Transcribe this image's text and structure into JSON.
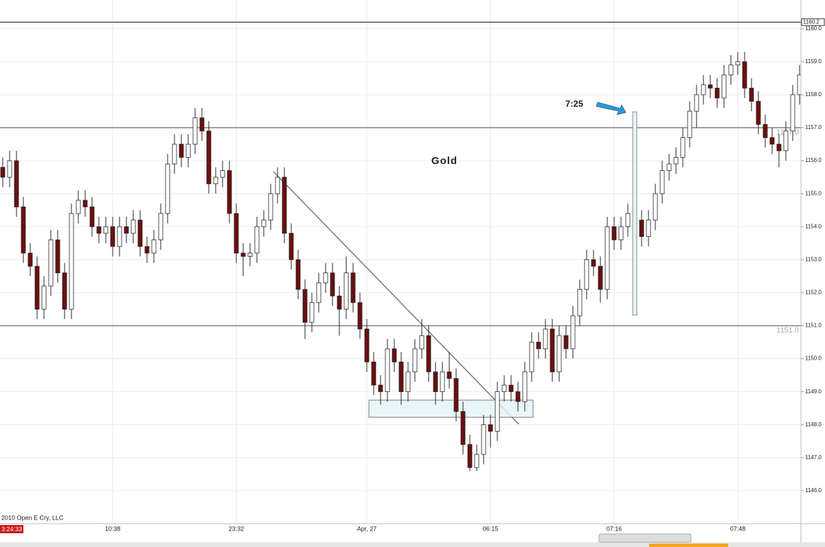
{
  "chart_data": {
    "type": "candlestick",
    "title": "Gold",
    "annotation": "7:25",
    "copyright": "2010 Open E Cry, LLC",
    "clock": "3:24:33",
    "categories": [
      null,
      null,
      null,
      null,
      null,
      null,
      null,
      null,
      null,
      null,
      null,
      null,
      null,
      null,
      null,
      null,
      "10:38",
      null,
      null,
      null,
      null,
      null,
      null,
      null,
      null,
      null,
      null,
      null,
      null,
      null,
      null,
      null,
      null,
      null,
      "23:32",
      null,
      null,
      null,
      null,
      null,
      null,
      null,
      null,
      null,
      null,
      null,
      null,
      null,
      null,
      null,
      null,
      null,
      null,
      "Apr, 27",
      null,
      null,
      null,
      null,
      null,
      null,
      null,
      null,
      null,
      null,
      null,
      null,
      null,
      null,
      null,
      null,
      null,
      "06:15",
      null,
      null,
      null,
      null,
      null,
      null,
      null,
      null,
      null,
      null,
      null,
      null,
      null,
      null,
      null,
      null,
      null,
      "07:16",
      null,
      null,
      null,
      null,
      null,
      null,
      null,
      null,
      null,
      null,
      null,
      null,
      null,
      null,
      null,
      null,
      null,
      "07:48",
      null,
      null,
      null,
      null,
      null,
      null,
      null,
      null,
      null
    ],
    "open": [
      1155.8,
      1155.5,
      1156.0,
      1154.6,
      1153.2,
      1152.8,
      1151.5,
      1152.2,
      1153.6,
      1152.6,
      1151.5,
      1154.4,
      1154.8,
      1154.6,
      1154.0,
      1153.8,
      1154.0,
      1153.4,
      1154.0,
      1153.8,
      1154.2,
      1153.4,
      1153.2,
      1153.6,
      1154.4,
      1155.9,
      1156.5,
      1156.1,
      1156.5,
      1157.3,
      1156.9,
      1155.3,
      1155.5,
      1155.7,
      1154.4,
      1153.2,
      1153.1,
      1153.2,
      1154.0,
      1154.2,
      1155.0,
      1155.5,
      1153.8,
      1153.0,
      1152.1,
      1151.1,
      1151.7,
      1152.3,
      1152.6,
      1151.9,
      1151.5,
      1152.6,
      1151.7,
      1150.9,
      1149.9,
      1149.2,
      1149.0,
      1150.3,
      1149.9,
      1149.0,
      1149.6,
      1150.3,
      1150.7,
      1149.6,
      1149.0,
      1149.6,
      1149.4,
      1148.4,
      1147.4,
      1146.7,
      1147.1,
      1148.0,
      1147.8,
      1149.0,
      1149.2,
      1149.0,
      1148.7,
      1149.6,
      1150.5,
      1150.3,
      1150.9,
      1149.6,
      1150.7,
      1150.3,
      1151.3,
      1152.1,
      1153.0,
      1152.8,
      1152.1,
      1154.0,
      1153.6,
      1154.0,
      1154.4,
      1154.2,
      1153.7,
      1154.2,
      1155.0,
      1155.7,
      1155.9,
      1156.1,
      1156.7,
      1157.5,
      1158.0,
      1158.3,
      1158.2,
      1157.9,
      1158.6,
      1158.9,
      1159.0,
      1158.2,
      1157.8,
      1157.1,
      1156.7,
      1156.5,
      1156.3,
      1156.9,
      1158.0
    ],
    "high": [
      1156.1,
      1156.3,
      1156.3,
      1154.9,
      1153.5,
      1153.1,
      1152.5,
      1153.9,
      1153.9,
      1152.9,
      1154.7,
      1155.1,
      1155.1,
      1154.9,
      1154.3,
      1154.3,
      1154.3,
      1154.3,
      1154.3,
      1154.5,
      1154.5,
      1153.7,
      1153.9,
      1154.7,
      1156.2,
      1156.8,
      1156.8,
      1156.8,
      1157.6,
      1157.6,
      1157.2,
      1155.8,
      1156.0,
      1156.0,
      1154.7,
      1153.5,
      1153.5,
      1154.3,
      1154.5,
      1155.3,
      1155.8,
      1155.8,
      1154.1,
      1153.3,
      1152.4,
      1152.0,
      1152.6,
      1152.9,
      1152.9,
      1152.2,
      1153.1,
      1152.9,
      1152.0,
      1151.2,
      1150.2,
      1149.5,
      1150.6,
      1150.6,
      1150.2,
      1149.9,
      1150.6,
      1151.2,
      1151.0,
      1149.9,
      1149.9,
      1150.2,
      1149.7,
      1148.7,
      1147.7,
      1147.4,
      1148.3,
      1148.3,
      1149.3,
      1149.5,
      1149.5,
      1149.3,
      1149.9,
      1150.8,
      1150.8,
      1151.2,
      1151.2,
      1151.0,
      1151.0,
      1151.6,
      1152.4,
      1153.3,
      1153.3,
      1153.1,
      1154.3,
      1154.3,
      1154.3,
      1154.7,
      1154.7,
      1154.5,
      1154.5,
      1155.3,
      1156.0,
      1156.2,
      1156.4,
      1157.0,
      1157.8,
      1158.3,
      1158.6,
      1158.6,
      1158.5,
      1158.9,
      1159.2,
      1159.3,
      1159.3,
      1158.5,
      1158.1,
      1157.4,
      1157.0,
      1156.8,
      1157.2,
      1158.3,
      1158.9
    ],
    "low": [
      1155.2,
      1155.2,
      1154.3,
      1152.9,
      1152.5,
      1151.2,
      1151.2,
      1151.9,
      1152.3,
      1151.2,
      1151.2,
      1154.1,
      1154.3,
      1153.7,
      1153.5,
      1153.5,
      1153.1,
      1153.1,
      1153.5,
      1153.5,
      1153.1,
      1152.9,
      1152.9,
      1153.3,
      1154.1,
      1155.6,
      1155.8,
      1155.8,
      1156.2,
      1156.6,
      1155.0,
      1155.0,
      1155.2,
      1154.1,
      1152.9,
      1152.5,
      1152.8,
      1152.9,
      1153.7,
      1153.9,
      1154.7,
      1153.5,
      1152.7,
      1151.8,
      1150.6,
      1150.8,
      1151.4,
      1152.0,
      1151.6,
      1150.7,
      1151.2,
      1151.4,
      1150.6,
      1149.6,
      1148.9,
      1148.6,
      1148.7,
      1149.6,
      1148.6,
      1148.7,
      1149.3,
      1150.0,
      1149.3,
      1148.6,
      1148.7,
      1149.1,
      1148.1,
      1147.1,
      1146.6,
      1146.6,
      1146.8,
      1147.3,
      1147.5,
      1148.7,
      1148.7,
      1148.4,
      1148.4,
      1149.3,
      1150.0,
      1150.0,
      1149.3,
      1149.3,
      1150.0,
      1150.0,
      1151.0,
      1151.8,
      1152.5,
      1151.7,
      1151.8,
      1153.3,
      1153.3,
      1153.7,
      1153.9,
      1153.4,
      1153.4,
      1153.9,
      1154.7,
      1155.4,
      1155.6,
      1155.8,
      1156.4,
      1157.0,
      1157.7,
      1157.9,
      1157.6,
      1157.6,
      1158.3,
      1158.6,
      1157.9,
      1157.5,
      1156.8,
      1156.4,
      1156.2,
      1155.8,
      1156.0,
      1156.6,
      1157.7
    ],
    "close": [
      1155.5,
      1156.0,
      1154.6,
      1153.2,
      1152.8,
      1151.5,
      1152.2,
      1153.6,
      1152.6,
      1151.5,
      1154.4,
      1154.8,
      1154.6,
      1154.0,
      1153.8,
      1154.0,
      1153.4,
      1154.0,
      1153.8,
      1154.2,
      1153.4,
      1153.2,
      1153.6,
      1154.4,
      1155.9,
      1156.5,
      1156.1,
      1156.5,
      1157.3,
      1156.9,
      1155.3,
      1155.5,
      1155.7,
      1154.4,
      1153.2,
      1153.1,
      1153.2,
      1154.0,
      1154.2,
      1155.0,
      1155.5,
      1153.8,
      1153.0,
      1152.1,
      1151.1,
      1151.7,
      1152.3,
      1152.6,
      1151.9,
      1151.5,
      1152.6,
      1151.7,
      1150.9,
      1149.9,
      1149.2,
      1149.0,
      1150.3,
      1149.9,
      1149.0,
      1149.6,
      1150.3,
      1150.7,
      1149.6,
      1149.0,
      1149.6,
      1149.4,
      1148.4,
      1147.4,
      1146.7,
      1147.1,
      1148.0,
      1147.8,
      1149.0,
      1149.2,
      1149.0,
      1148.7,
      1149.6,
      1150.5,
      1150.3,
      1150.9,
      1149.6,
      1150.7,
      1150.3,
      1151.3,
      1152.1,
      1153.0,
      1152.8,
      1152.1,
      1154.0,
      1153.6,
      1154.0,
      1154.4,
      1154.2,
      1153.7,
      1154.2,
      1155.0,
      1155.7,
      1155.9,
      1156.1,
      1156.7,
      1157.5,
      1158.0,
      1158.3,
      1158.2,
      1157.9,
      1158.6,
      1158.9,
      1159.0,
      1158.2,
      1157.8,
      1157.1,
      1156.7,
      1156.5,
      1156.3,
      1156.9,
      1158.0,
      1158.6
    ],
    "up_color": "#ffffff",
    "down_color": "#6b1010",
    "ylim": [
      1145.0,
      1160.87
    ],
    "yticks": [
      {
        "value": 1146,
        "label": "1146.0"
      },
      {
        "value": 1147,
        "label": "1147.0"
      },
      {
        "value": 1148,
        "label": "1148.0"
      },
      {
        "value": 1149,
        "label": "1149.0"
      },
      {
        "value": 1150,
        "label": "1150.0"
      },
      {
        "value": 1151,
        "label": "1151.0"
      },
      {
        "value": 1152,
        "label": "1152.0"
      },
      {
        "value": 1153,
        "label": "1153.0"
      },
      {
        "value": 1154,
        "label": "1154.0"
      },
      {
        "value": 1155,
        "label": "1155.0"
      },
      {
        "value": 1156,
        "label": "1156.0"
      },
      {
        "value": 1157,
        "label": "1157.0"
      },
      {
        "value": 1158,
        "label": "1158.0"
      },
      {
        "value": 1159,
        "label": "1159.0"
      },
      {
        "value": 1160,
        "label": "1160.0"
      }
    ],
    "hlines": [
      {
        "value": 1160.2,
        "label": "1160.2"
      },
      {
        "value": 1157,
        "label": "1157.0"
      },
      {
        "value": 1151,
        "label": "1151.0"
      }
    ],
    "grid": true
  }
}
